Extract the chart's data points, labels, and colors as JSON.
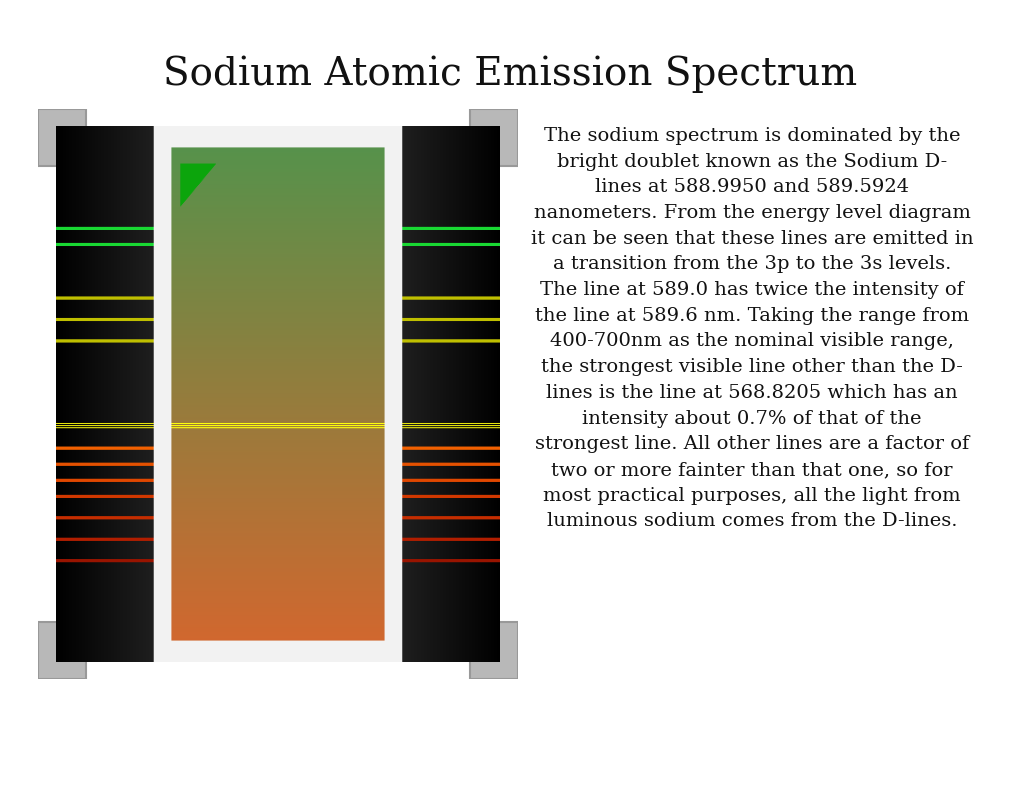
{
  "title": "Sodium Atomic Emission Spectrum",
  "title_fontsize": 28,
  "body_text_lines": [
    "The sodium spectrum is dominated by the",
    "bright doublet known as the Sodium D-",
    "lines at 588.9950 and 589.5924",
    "nanometers. From the energy level diagram",
    "it can be seen that these lines are emitted in",
    "a transition from the 3p to the 3s levels.",
    "The line at 589.0 has twice the intensity of",
    "the line at 589.6 nm. Taking the range from",
    "400-700nm as the nominal visible range,",
    "the strongest visible line other than the D-",
    "lines is the line at 568.8205 which has an",
    "intensity about 0.7% of that of the",
    "strongest line. All other lines are a factor of",
    "two or more fainter than that one, so for",
    "most practical purposes, all the light from",
    "luminous sodium comes from the D-lines."
  ],
  "text_fontsize": 14,
  "background_color": "#ffffff",
  "fig_width": 10.2,
  "fig_height": 7.88
}
